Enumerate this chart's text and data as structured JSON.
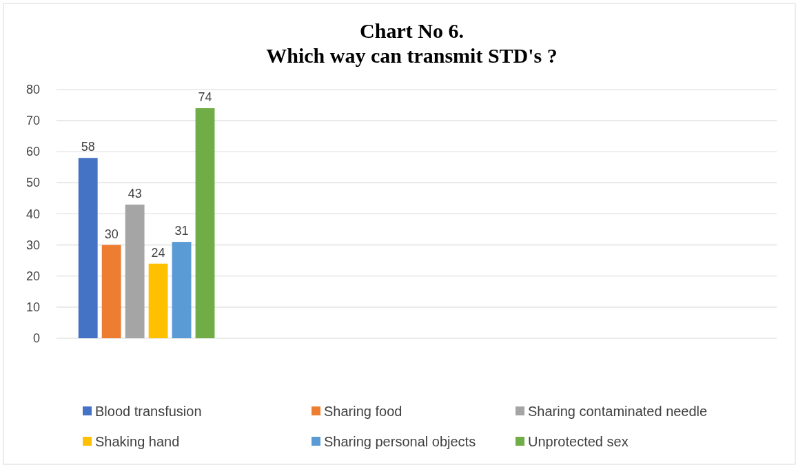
{
  "chart_data": {
    "type": "bar",
    "title": "Chart No 6.",
    "subtitle": "Which way can transmit STD's ?",
    "categories": [
      null,
      null,
      null,
      null
    ],
    "series": [
      {
        "name": "Blood transfusion",
        "color": "#4472c4",
        "values": [
          58,
          null,
          null,
          null
        ]
      },
      {
        "name": "Sharing food",
        "color": "#ed7d31",
        "values": [
          30,
          null,
          null,
          null
        ]
      },
      {
        "name": "Sharing contaminated needle",
        "color": "#a5a5a5",
        "values": [
          43,
          null,
          null,
          null
        ]
      },
      {
        "name": "Shaking hand",
        "color": "#ffc000",
        "values": [
          24,
          null,
          null,
          null
        ]
      },
      {
        "name": "Sharing personal objects",
        "color": "#5b9bd5",
        "values": [
          31,
          null,
          null,
          null
        ]
      },
      {
        "name": "Unprotected sex",
        "color": "#70ad47",
        "values": [
          74,
          null,
          null,
          null
        ]
      }
    ],
    "ylim": [
      0,
      80
    ],
    "yticks": [
      0,
      10,
      20,
      30,
      40,
      50,
      60,
      70,
      80
    ],
    "grid": "y",
    "data_labels": true,
    "legend": "bottom"
  }
}
